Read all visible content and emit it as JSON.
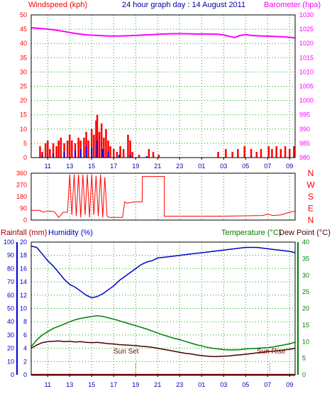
{
  "colors": {
    "wind": "#ff0000",
    "gust": "#ff0000",
    "wind_avg": "#0000ff",
    "wind_low": "#00aa00",
    "barometer": "#ff00ff",
    "winddir": "#ff0000",
    "humidity": "#0000cc",
    "temperature": "#008000",
    "dewpoint": "#4b0000",
    "rain": "#aa0000",
    "axis": "#000000",
    "grid": "#00aa00",
    "marker": "#7f0000",
    "title": "#0000aa"
  },
  "header": {
    "windspeed_label": "Windspeed (kph)",
    "title": "24 hour graph day : 14 August 2011",
    "barometer_label": "Barometer (hpa)"
  },
  "bottom_header": {
    "rainfall_label": "Rainfall (mm)",
    "humidity_label": "Humidity (%)",
    "temperature_label": "Temperature (°C)",
    "dewpoint_label": "Dew Point (°C)"
  },
  "annotations": {
    "sunset": "Sun Set",
    "sunrise": "Sun Rise"
  },
  "chart_data": [
    {
      "type": "bar",
      "name": "Wind speed and barometer",
      "x_start": 9.5,
      "x_end": 33.5,
      "xticks": [
        "11",
        "13",
        "15",
        "17",
        "19",
        "21",
        "23",
        "01",
        "03",
        "05",
        "07",
        "09"
      ],
      "ylim": [
        0,
        50
      ],
      "yticks": [
        0,
        5,
        10,
        15,
        20,
        25,
        30,
        35,
        40,
        45,
        50
      ],
      "y2lim": [
        980,
        1030
      ],
      "y2ticks": [
        980,
        985,
        990,
        995,
        1000,
        1005,
        1010,
        1015,
        1020,
        1025,
        1030
      ],
      "wind_points": [
        [
          10.3,
          4
        ],
        [
          10.5,
          2
        ],
        [
          10.8,
          5
        ],
        [
          11.0,
          6
        ],
        [
          11.2,
          3
        ],
        [
          11.5,
          5
        ],
        [
          11.8,
          4
        ],
        [
          12.0,
          6
        ],
        [
          12.2,
          7
        ],
        [
          12.5,
          5
        ],
        [
          12.8,
          6
        ],
        [
          13.0,
          8
        ],
        [
          13.2,
          6
        ],
        [
          13.5,
          5
        ],
        [
          13.8,
          7
        ],
        [
          14.0,
          6
        ],
        [
          14.3,
          7
        ],
        [
          14.5,
          9
        ],
        [
          14.7,
          6
        ],
        [
          15.0,
          10
        ],
        [
          15.2,
          8
        ],
        [
          15.4,
          13
        ],
        [
          15.5,
          15
        ],
        [
          15.7,
          9
        ],
        [
          15.9,
          12
        ],
        [
          16.1,
          7
        ],
        [
          16.3,
          10
        ],
        [
          16.5,
          6
        ],
        [
          16.7,
          4
        ],
        [
          17.0,
          3
        ],
        [
          17.3,
          2
        ],
        [
          17.6,
          4
        ],
        [
          17.9,
          3
        ],
        [
          18.3,
          8
        ],
        [
          18.5,
          6
        ],
        [
          18.7,
          2
        ],
        [
          19.3,
          1
        ],
        [
          20.2,
          3
        ],
        [
          20.6,
          2
        ],
        [
          21.1,
          1
        ],
        [
          26.5,
          2
        ],
        [
          27.2,
          3
        ],
        [
          27.8,
          2
        ],
        [
          28.3,
          3
        ],
        [
          28.9,
          4
        ],
        [
          29.5,
          3
        ],
        [
          30.0,
          2
        ],
        [
          30.4,
          3
        ],
        [
          31.1,
          4
        ],
        [
          31.4,
          3
        ],
        [
          31.8,
          4
        ],
        [
          32.2,
          3
        ],
        [
          32.6,
          4
        ],
        [
          33.0,
          3
        ],
        [
          33.4,
          4
        ]
      ],
      "wind_avg_points": [
        [
          10.5,
          1
        ],
        [
          11.5,
          1.5
        ],
        [
          12.5,
          2
        ],
        [
          13.5,
          2.5
        ],
        [
          14.0,
          3
        ],
        [
          14.5,
          4
        ],
        [
          15.0,
          3.5
        ],
        [
          15.5,
          6
        ],
        [
          16.0,
          3
        ],
        [
          16.5,
          2
        ],
        [
          17.5,
          1
        ],
        [
          18.5,
          1
        ],
        [
          20.0,
          0.5
        ]
      ],
      "barometer": [
        [
          9.5,
          1025.5
        ],
        [
          10.5,
          1025.2
        ],
        [
          11.5,
          1024.8
        ],
        [
          12.5,
          1024.2
        ],
        [
          13.5,
          1023.5
        ],
        [
          14.5,
          1023.0
        ],
        [
          15.5,
          1022.8
        ],
        [
          16.5,
          1022.6
        ],
        [
          17.5,
          1022.6
        ],
        [
          18.5,
          1022.7
        ],
        [
          19.5,
          1022.9
        ],
        [
          20.5,
          1023.1
        ],
        [
          21.5,
          1023.3
        ],
        [
          22.5,
          1023.4
        ],
        [
          23.5,
          1023.4
        ],
        [
          24.5,
          1023.3
        ],
        [
          25.5,
          1023.3
        ],
        [
          26.5,
          1023.2
        ],
        [
          27.0,
          1023.0
        ],
        [
          27.5,
          1022.5
        ],
        [
          28.0,
          1022.1
        ],
        [
          28.5,
          1022.8
        ],
        [
          29.0,
          1023.1
        ],
        [
          29.5,
          1022.8
        ],
        [
          30.5,
          1022.6
        ],
        [
          31.5,
          1022.5
        ],
        [
          32.5,
          1022.3
        ],
        [
          33.5,
          1022.0
        ]
      ]
    },
    {
      "type": "line",
      "name": "Wind direction",
      "x_start": 9.5,
      "x_end": 33.5,
      "ylim": [
        0,
        360
      ],
      "yticks": [
        0,
        90,
        180,
        270,
        360
      ],
      "compass": [
        "N",
        "W",
        "S",
        "E",
        "N"
      ],
      "series": [
        [
          9.5,
          75
        ],
        [
          10.3,
          75
        ],
        [
          10.6,
          60
        ],
        [
          11.0,
          70
        ],
        [
          11.6,
          65
        ],
        [
          12.0,
          20
        ],
        [
          12.4,
          60
        ],
        [
          12.8,
          60
        ],
        [
          13.0,
          350
        ],
        [
          13.2,
          40
        ],
        [
          13.4,
          350
        ],
        [
          13.6,
          30
        ],
        [
          13.8,
          350
        ],
        [
          14.0,
          20
        ],
        [
          14.2,
          350
        ],
        [
          14.4,
          40
        ],
        [
          14.6,
          350
        ],
        [
          14.8,
          20
        ],
        [
          15.0,
          350
        ],
        [
          15.2,
          40
        ],
        [
          15.4,
          340
        ],
        [
          15.6,
          30
        ],
        [
          15.8,
          350
        ],
        [
          16.0,
          20
        ],
        [
          16.2,
          330
        ],
        [
          16.4,
          30
        ],
        [
          16.6,
          20
        ],
        [
          17.8,
          20
        ],
        [
          18.0,
          140
        ],
        [
          18.2,
          130
        ],
        [
          19.0,
          140
        ],
        [
          19.6,
          140
        ],
        [
          19.6,
          335
        ],
        [
          21.6,
          335
        ],
        [
          21.6,
          30
        ],
        [
          27.0,
          30
        ],
        [
          30.5,
          35
        ],
        [
          31.0,
          45
        ],
        [
          31.5,
          35
        ],
        [
          32.2,
          40
        ],
        [
          32.8,
          55
        ],
        [
          33.5,
          70
        ]
      ]
    },
    {
      "type": "line",
      "name": "Humidity, temperature, dew point and rainfall",
      "x_start": 9.5,
      "x_end": 33.5,
      "ylim": [
        0,
        100
      ],
      "yticks": [
        0,
        10,
        20,
        30,
        40,
        50,
        60,
        70,
        80,
        90,
        100
      ],
      "y2lim": [
        0,
        40
      ],
      "y2ticks": [
        0,
        5,
        10,
        15,
        20,
        25,
        30,
        35,
        40
      ],
      "sunset_hour": 19.0,
      "sunrise_hour": 31.2,
      "humidity": [
        [
          9.5,
          97
        ],
        [
          10.0,
          96
        ],
        [
          10.5,
          91
        ],
        [
          11.0,
          86
        ],
        [
          11.5,
          82
        ],
        [
          12.0,
          77
        ],
        [
          12.5,
          72
        ],
        [
          13.0,
          68
        ],
        [
          13.5,
          66
        ],
        [
          14.0,
          63
        ],
        [
          14.5,
          60
        ],
        [
          15.0,
          58
        ],
        [
          15.5,
          59
        ],
        [
          16.0,
          61
        ],
        [
          16.5,
          64
        ],
        [
          17.0,
          67
        ],
        [
          17.5,
          71
        ],
        [
          18.0,
          74
        ],
        [
          18.5,
          77
        ],
        [
          19.0,
          80
        ],
        [
          19.5,
          83
        ],
        [
          20.0,
          85
        ],
        [
          20.5,
          86
        ],
        [
          21.0,
          88
        ],
        [
          22.0,
          89
        ],
        [
          23.0,
          90
        ],
        [
          24.0,
          91
        ],
        [
          25.0,
          92
        ],
        [
          26.0,
          93
        ],
        [
          27.0,
          94
        ],
        [
          28.0,
          95
        ],
        [
          29.0,
          96
        ],
        [
          30.0,
          96
        ],
        [
          31.0,
          95
        ],
        [
          32.0,
          94
        ],
        [
          33.0,
          93
        ],
        [
          33.5,
          92
        ]
      ],
      "temperature": [
        [
          9.5,
          8.5
        ],
        [
          10.0,
          10.5
        ],
        [
          10.5,
          12.0
        ],
        [
          11.0,
          13.0
        ],
        [
          11.5,
          14.0
        ],
        [
          12.0,
          14.6
        ],
        [
          12.5,
          15.3
        ],
        [
          13.0,
          16.0
        ],
        [
          13.5,
          16.6
        ],
        [
          14.0,
          17.0
        ],
        [
          14.5,
          17.3
        ],
        [
          15.0,
          17.6
        ],
        [
          15.5,
          17.8
        ],
        [
          16.0,
          17.6
        ],
        [
          16.5,
          17.2
        ],
        [
          17.0,
          16.8
        ],
        [
          17.5,
          16.3
        ],
        [
          18.0,
          15.8
        ],
        [
          18.5,
          15.3
        ],
        [
          19.0,
          14.8
        ],
        [
          19.5,
          14.3
        ],
        [
          20.0,
          13.8
        ],
        [
          20.5,
          13.2
        ],
        [
          21.0,
          12.6
        ],
        [
          21.5,
          12.0
        ],
        [
          22.0,
          11.5
        ],
        [
          22.5,
          11.0
        ],
        [
          23.0,
          10.6
        ],
        [
          23.5,
          10.1
        ],
        [
          24.0,
          9.6
        ],
        [
          24.5,
          9.1
        ],
        [
          25.0,
          8.7
        ],
        [
          25.5,
          8.3
        ],
        [
          26.0,
          8.0
        ],
        [
          26.5,
          7.8
        ],
        [
          27.0,
          7.6
        ],
        [
          27.5,
          7.5
        ],
        [
          28.0,
          7.5
        ],
        [
          28.5,
          7.6
        ],
        [
          29.0,
          7.8
        ],
        [
          29.5,
          7.9
        ],
        [
          30.0,
          8.0
        ],
        [
          30.5,
          8.1
        ],
        [
          31.0,
          8.2
        ],
        [
          31.5,
          8.4
        ],
        [
          32.0,
          8.7
        ],
        [
          32.5,
          9.0
        ],
        [
          33.0,
          9.4
        ],
        [
          33.5,
          9.8
        ]
      ],
      "dewpoint": [
        [
          9.5,
          8.0
        ],
        [
          10.0,
          9.0
        ],
        [
          10.5,
          9.7
        ],
        [
          11.0,
          10.0
        ],
        [
          11.5,
          10.1
        ],
        [
          12.0,
          10.2
        ],
        [
          12.5,
          10.0
        ],
        [
          13.0,
          10.1
        ],
        [
          13.5,
          9.9
        ],
        [
          14.0,
          10.0
        ],
        [
          14.5,
          9.8
        ],
        [
          15.0,
          9.7
        ],
        [
          15.5,
          9.8
        ],
        [
          16.0,
          9.6
        ],
        [
          16.5,
          9.4
        ],
        [
          17.0,
          9.3
        ],
        [
          17.5,
          9.1
        ],
        [
          18.0,
          9.0
        ],
        [
          18.5,
          8.9
        ],
        [
          19.0,
          8.8
        ],
        [
          19.5,
          8.6
        ],
        [
          20.0,
          8.5
        ],
        [
          20.5,
          8.3
        ],
        [
          21.0,
          8.0
        ],
        [
          21.5,
          7.7
        ],
        [
          22.0,
          7.4
        ],
        [
          22.5,
          7.1
        ],
        [
          23.0,
          6.8
        ],
        [
          23.5,
          6.5
        ],
        [
          24.0,
          6.3
        ],
        [
          24.5,
          6.0
        ],
        [
          25.0,
          5.8
        ],
        [
          25.5,
          5.6
        ],
        [
          26.0,
          5.5
        ],
        [
          26.5,
          5.5
        ],
        [
          27.0,
          5.6
        ],
        [
          27.5,
          5.7
        ],
        [
          28.0,
          5.9
        ],
        [
          28.5,
          6.0
        ],
        [
          29.0,
          6.2
        ],
        [
          29.5,
          6.4
        ],
        [
          30.0,
          6.6
        ],
        [
          30.5,
          6.8
        ],
        [
          31.0,
          7.0
        ],
        [
          31.5,
          7.1
        ],
        [
          32.0,
          7.3
        ],
        [
          32.5,
          7.5
        ],
        [
          33.0,
          7.7
        ],
        [
          33.5,
          8.0
        ]
      ],
      "rainfall": [
        [
          9.5,
          0
        ],
        [
          33.5,
          0
        ]
      ]
    }
  ]
}
